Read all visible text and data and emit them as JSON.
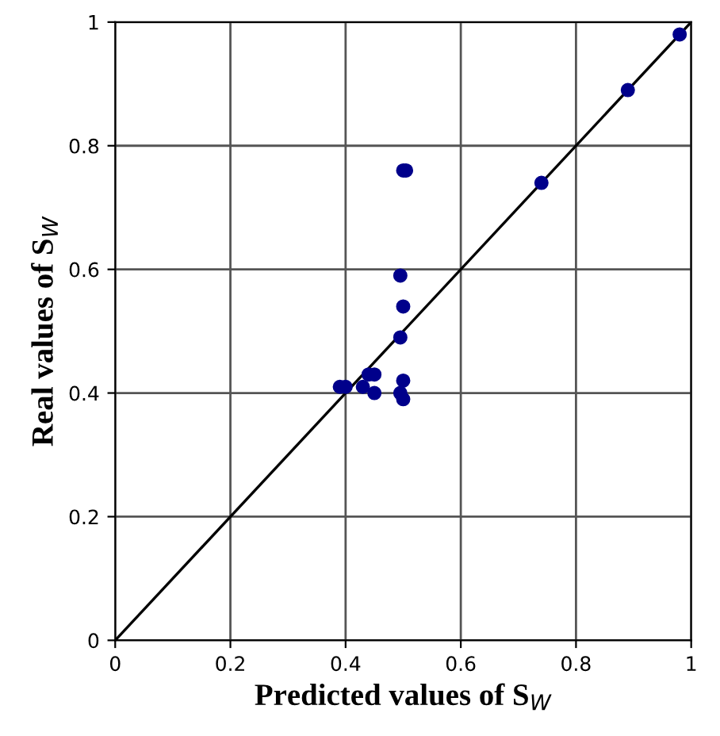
{
  "chart_data": {
    "type": "scatter",
    "xlabel": "Predicted values of S$_{W}$",
    "ylabel": "Real values of S$_{W}$",
    "xlim": [
      0,
      1
    ],
    "ylim": [
      0,
      1
    ],
    "xticks": [
      0,
      0.2,
      0.4,
      0.6,
      0.8,
      1
    ],
    "yticks": [
      0,
      0.2,
      0.4,
      0.6,
      0.8,
      1
    ],
    "grid": true,
    "marker": "circle",
    "series": [
      {
        "type": "scatter",
        "color": "#00008b",
        "x": [
          0.39,
          0.4,
          0.43,
          0.44,
          0.45,
          0.45,
          0.495,
          0.5,
          0.495,
          0.5,
          0.495,
          0.5,
          0.5,
          0.505,
          0.74,
          0.89,
          0.98
        ],
        "values": [
          0.41,
          0.41,
          0.41,
          0.43,
          0.43,
          0.4,
          0.59,
          0.54,
          0.49,
          0.42,
          0.4,
          0.39,
          0.76,
          0.76,
          0.74,
          0.89,
          0.98
        ]
      },
      {
        "type": "line",
        "marker": "none",
        "color": "#000000",
        "x": [
          0,
          1
        ],
        "values": [
          0,
          1
        ]
      }
    ]
  }
}
